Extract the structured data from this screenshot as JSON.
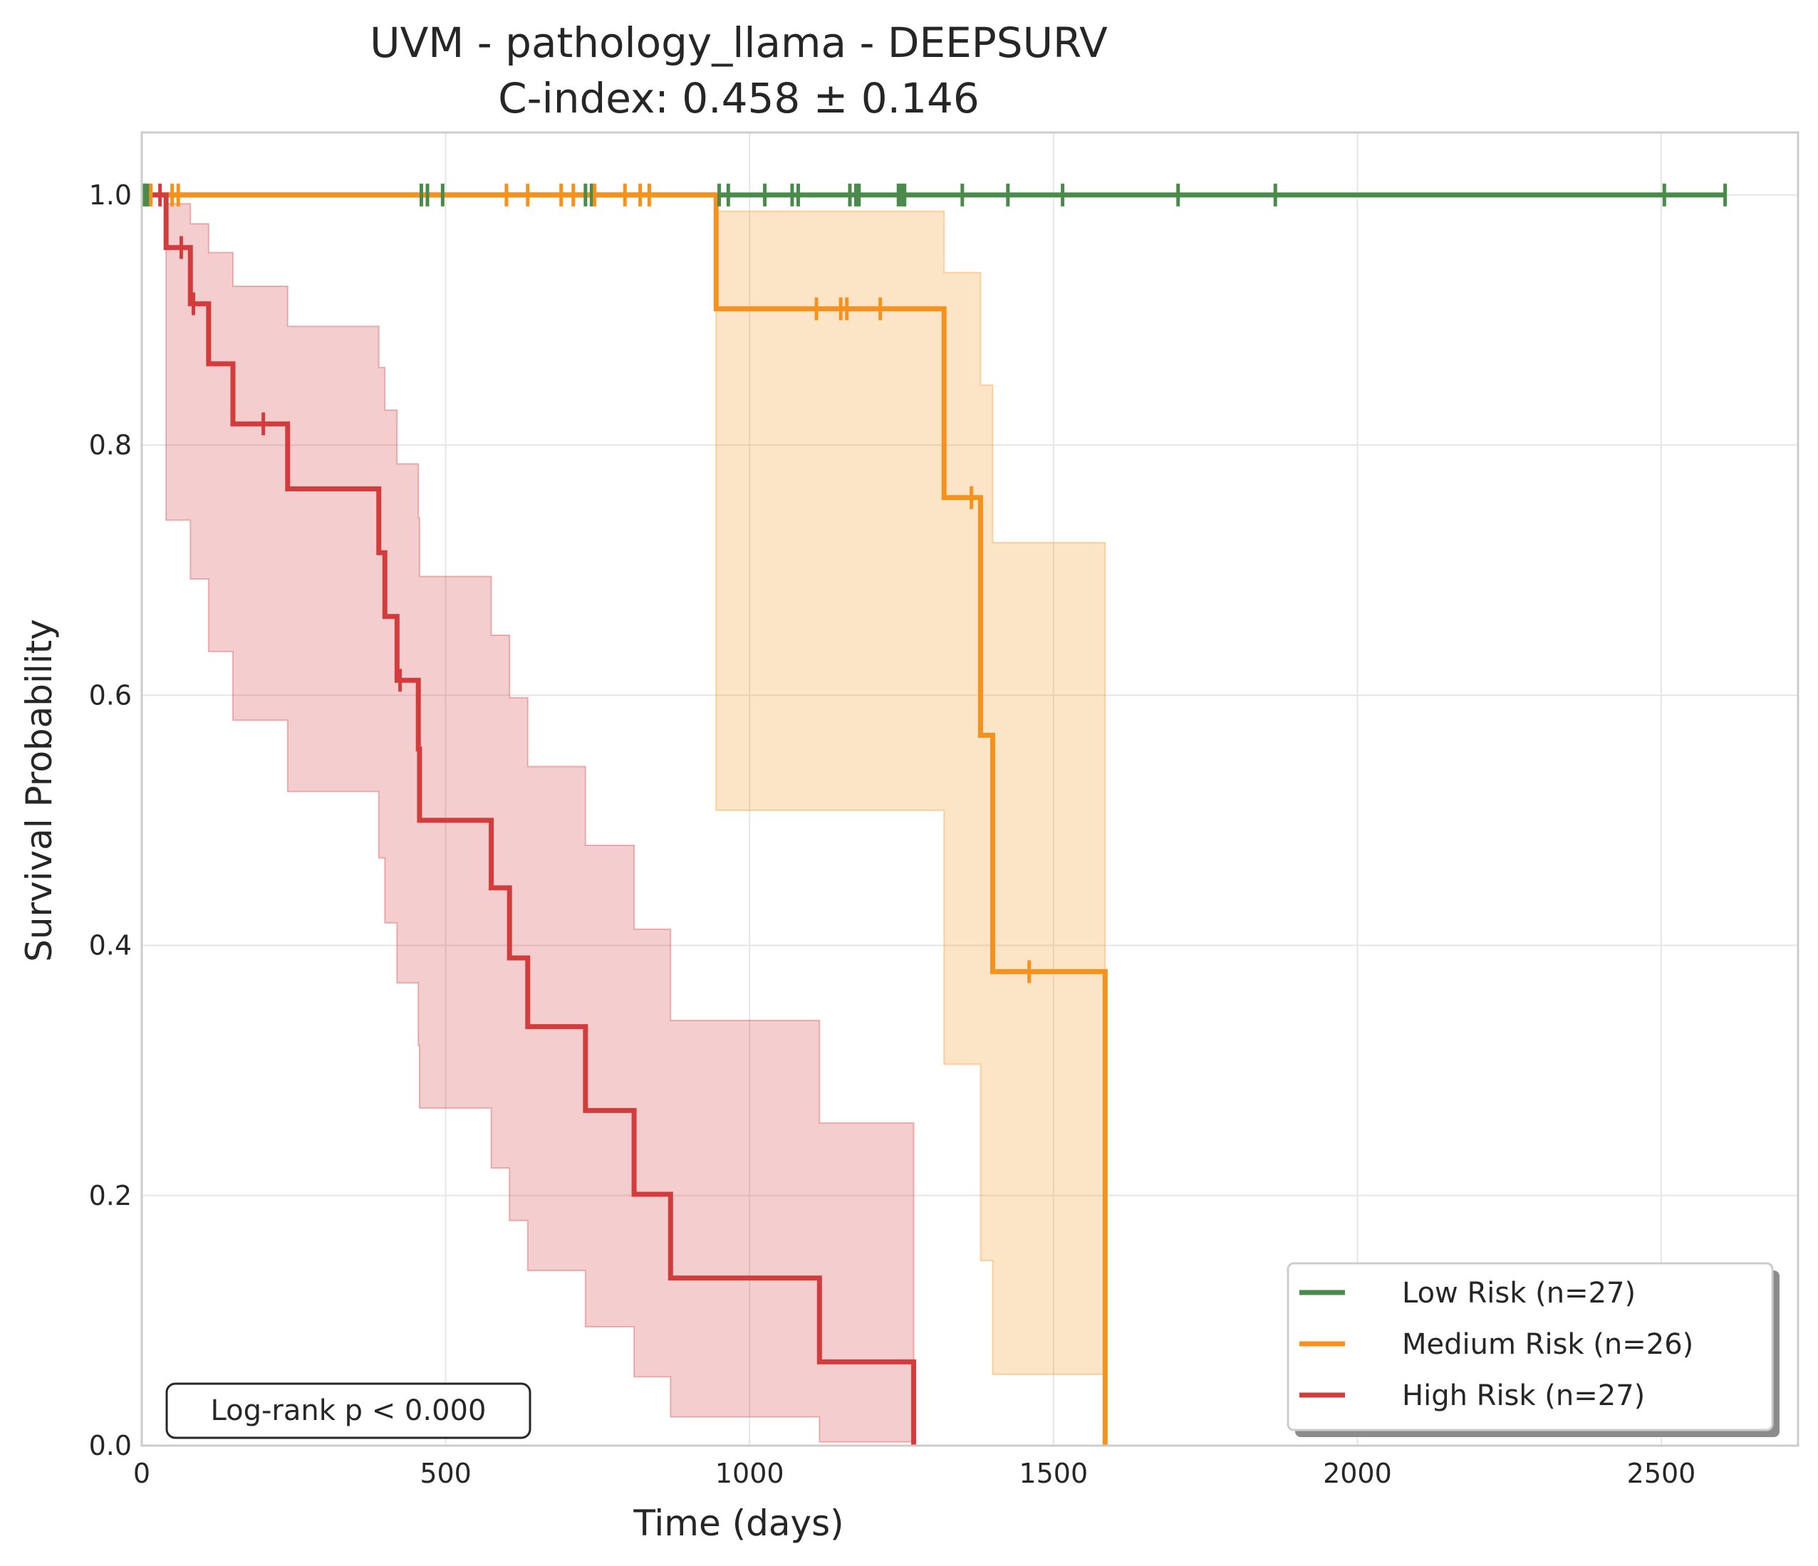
{
  "title_line1": "UVM - pathology_llama - DEEPSURV",
  "title_line2": "C-index: 0.458 ± 0.146",
  "annotation": "Log-rank p < 0.000",
  "chart_data": {
    "type": "line",
    "subtype": "kaplan-meier step curves with confidence bands and censor marks",
    "xlabel": "Time (days)",
    "ylabel": "Survival Probability",
    "xlim": [
      0,
      2725
    ],
    "ylim": [
      0,
      1.05
    ],
    "xticks": [
      0,
      500,
      1000,
      1500,
      2000,
      2500
    ],
    "yticks": [
      0.0,
      0.2,
      0.4,
      0.6,
      0.8,
      1.0
    ],
    "xtick_labels": [
      "0",
      "500",
      "1000",
      "1500",
      "2000",
      "2500"
    ],
    "ytick_labels": [
      "0.0",
      "0.2",
      "0.4",
      "0.6",
      "0.8",
      "1.0"
    ],
    "grid": true,
    "legend_position": "lower right",
    "series": [
      {
        "name": "Low Risk (n=27)",
        "color": "#4a8a4a",
        "steps": [
          [
            0,
            1.0
          ],
          [
            2605,
            1.0
          ]
        ],
        "censor": [
          2,
          5,
          8,
          12,
          460,
          470,
          495,
          730,
          740,
          950,
          965,
          1025,
          1070,
          1080,
          1165,
          1175,
          1180,
          1245,
          1250,
          1255,
          1350,
          1425,
          1515,
          1705,
          1865,
          2505,
          2605
        ],
        "ci": []
      },
      {
        "name": "Medium Risk (n=26)",
        "color": "#f5921e",
        "steps": [
          [
            0,
            1.0
          ],
          [
            945,
            0.909
          ],
          [
            1320,
            0.758
          ],
          [
            1380,
            0.568
          ],
          [
            1400,
            0.379
          ],
          [
            1585,
            0.0
          ]
        ],
        "censor": [
          15,
          50,
          60,
          600,
          635,
          690,
          710,
          745,
          795,
          820,
          835,
          1110,
          1150,
          1160,
          1215,
          1365,
          1460
        ],
        "ci": [
          [
            0,
            1.0,
            1.0
          ],
          [
            945,
            0.508,
            0.987
          ],
          [
            1320,
            0.305,
            0.938
          ],
          [
            1380,
            0.148,
            0.848
          ],
          [
            1400,
            0.057,
            0.722
          ],
          [
            1585,
            null,
            null
          ]
        ]
      },
      {
        "name": "High Risk (n=27)",
        "color": "#d23c3c",
        "steps": [
          [
            0,
            1.0
          ],
          [
            40,
            0.958
          ],
          [
            80,
            0.913
          ],
          [
            110,
            0.865
          ],
          [
            150,
            0.817
          ],
          [
            240,
            0.765
          ],
          [
            390,
            0.714
          ],
          [
            400,
            0.663
          ],
          [
            420,
            0.612
          ],
          [
            455,
            0.557
          ],
          [
            457,
            0.5
          ],
          [
            575,
            0.446
          ],
          [
            605,
            0.39
          ],
          [
            635,
            0.335
          ],
          [
            730,
            0.268
          ],
          [
            810,
            0.201
          ],
          [
            870,
            0.134
          ],
          [
            1115,
            0.067
          ],
          [
            1270,
            0.0
          ]
        ],
        "censor": [
          30,
          65,
          85,
          200,
          425
        ],
        "ci": [
          [
            0,
            1.0,
            1.0
          ],
          [
            40,
            0.74,
            0.993
          ],
          [
            80,
            0.693,
            0.977
          ],
          [
            110,
            0.635,
            0.954
          ],
          [
            150,
            0.58,
            0.927
          ],
          [
            240,
            0.523,
            0.895
          ],
          [
            390,
            0.47,
            0.862
          ],
          [
            400,
            0.418,
            0.828
          ],
          [
            420,
            0.37,
            0.785
          ],
          [
            455,
            0.32,
            0.742
          ],
          [
            457,
            0.27,
            0.695
          ],
          [
            575,
            0.222,
            0.648
          ],
          [
            605,
            0.18,
            0.598
          ],
          [
            635,
            0.14,
            0.543
          ],
          [
            730,
            0.095,
            0.48
          ],
          [
            810,
            0.055,
            0.413
          ],
          [
            870,
            0.023,
            0.34
          ],
          [
            1115,
            0.003,
            0.258
          ],
          [
            1270,
            null,
            null
          ]
        ]
      }
    ]
  }
}
